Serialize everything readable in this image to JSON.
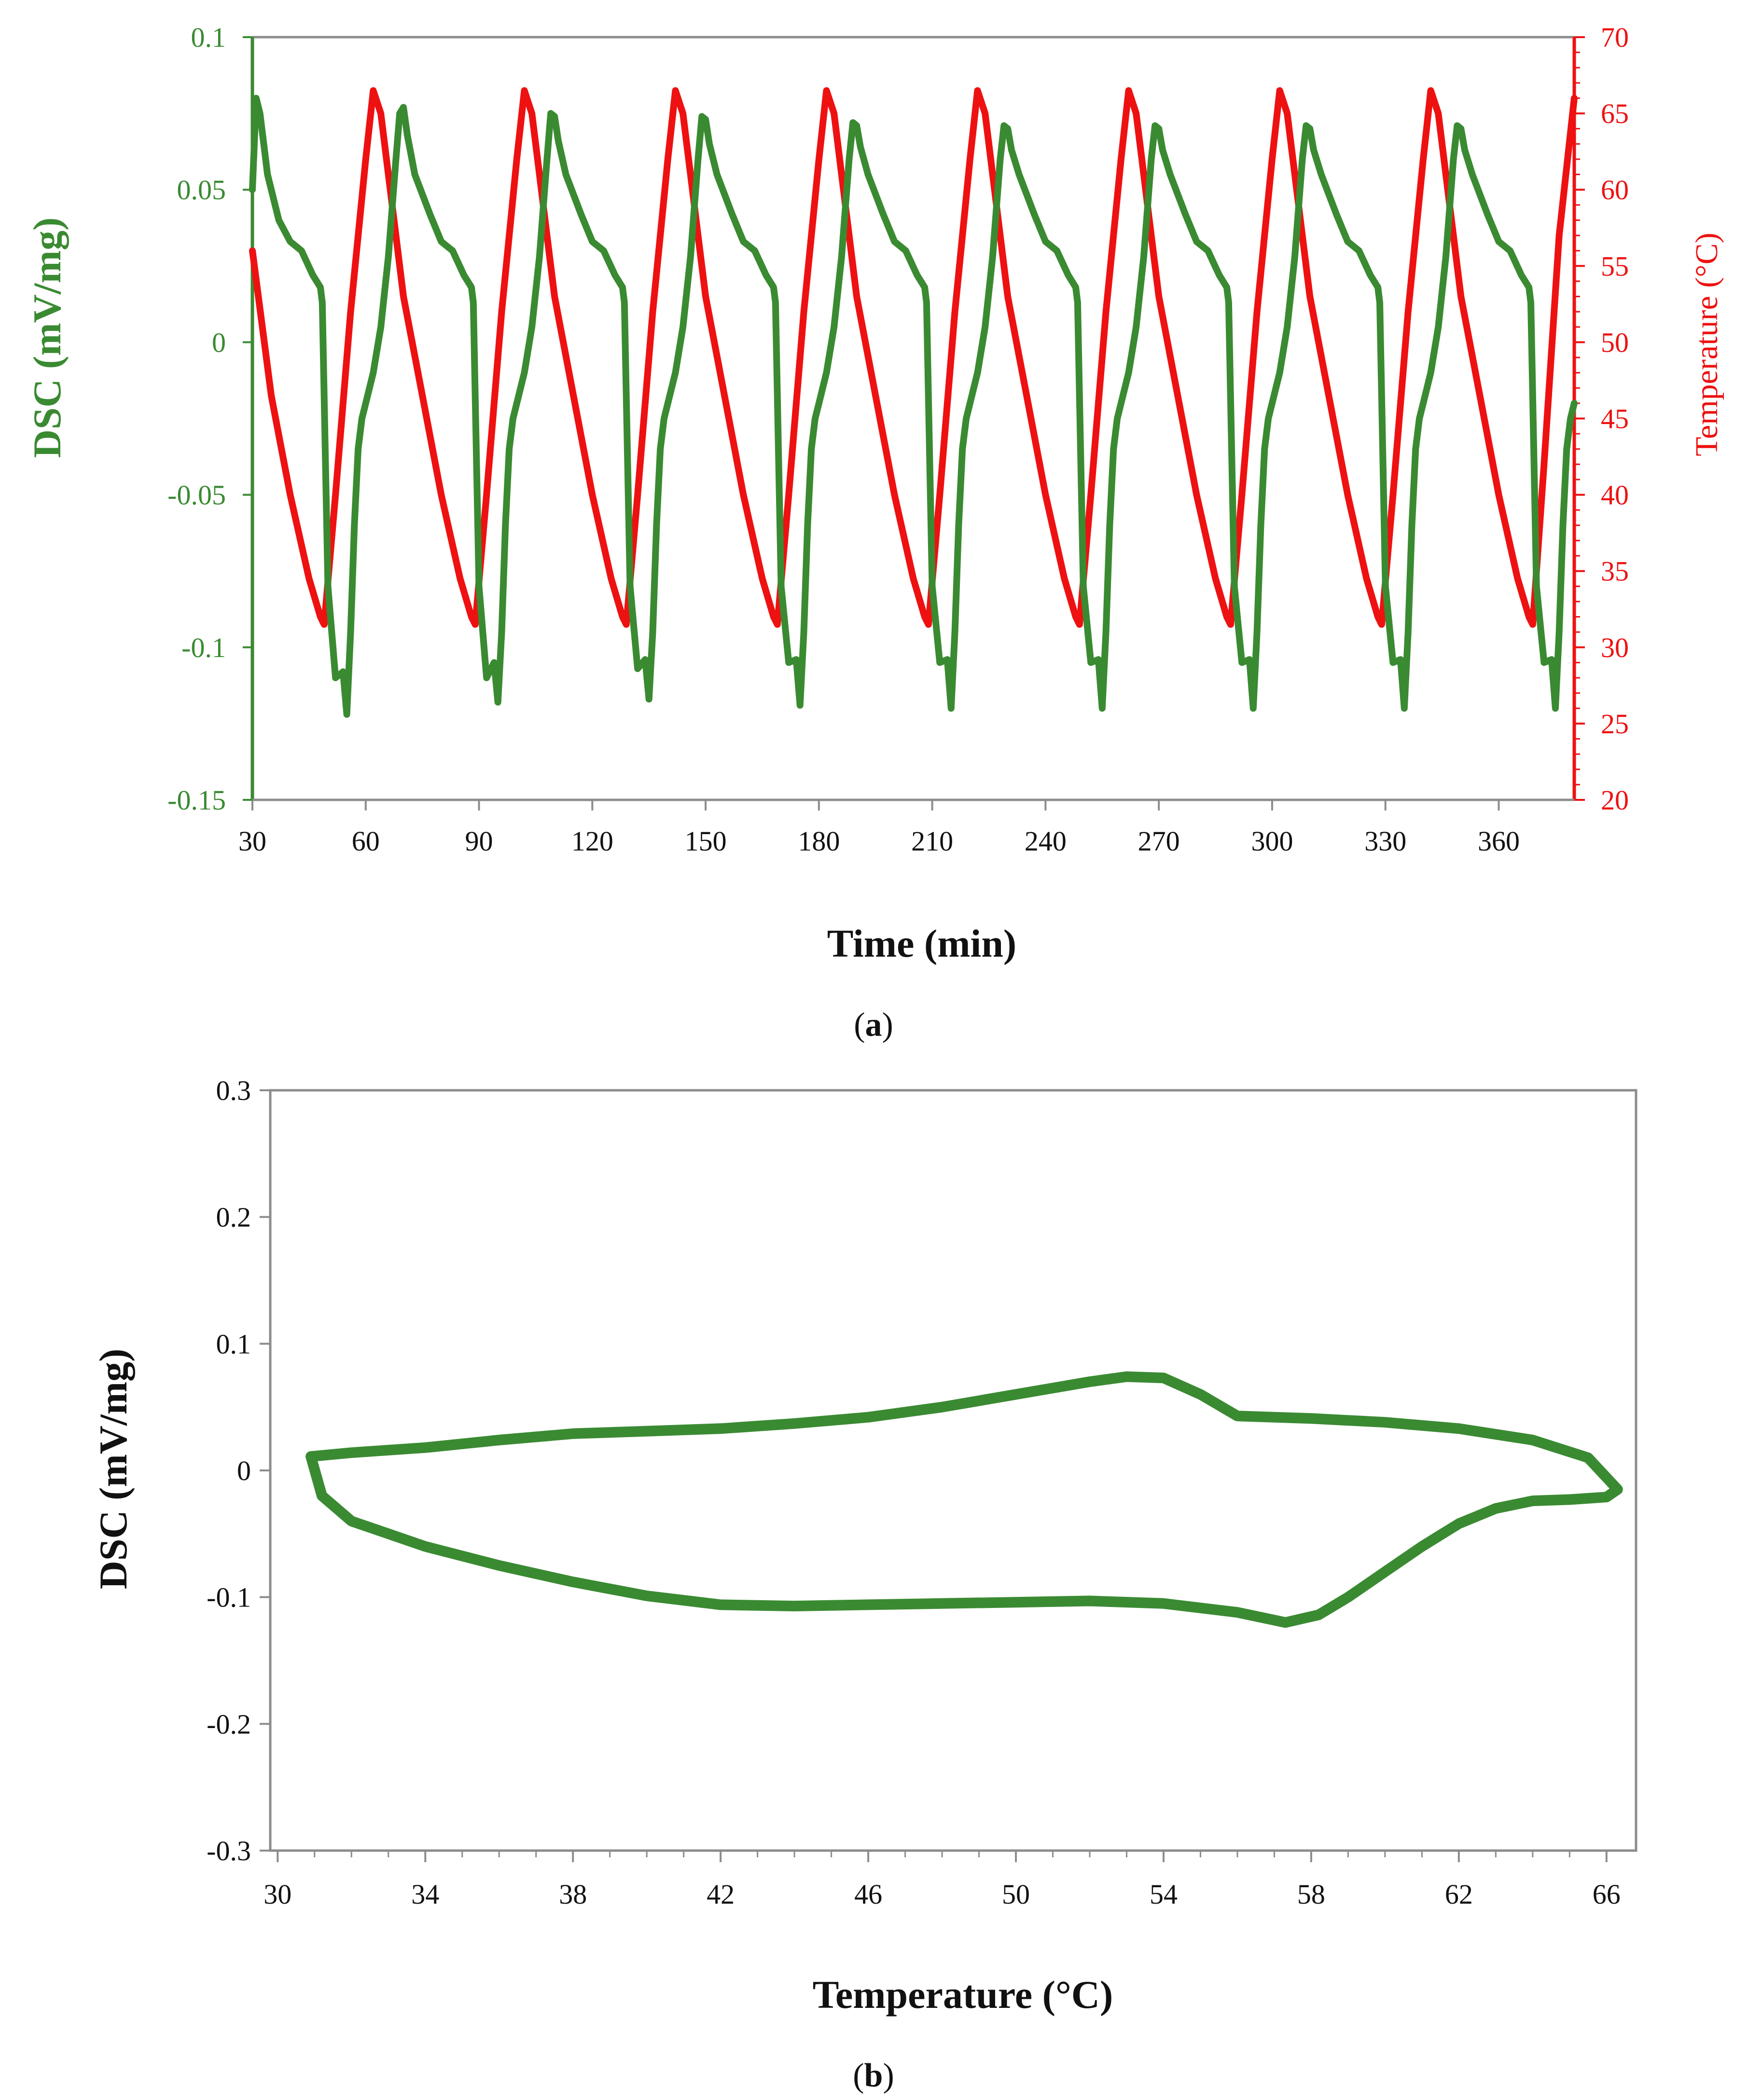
{
  "colors": {
    "dsc": "#3a8a32",
    "temperature": "#ee1111",
    "axis": "#8c8c8c",
    "text": "#111111"
  },
  "chart_data": [
    {
      "id": "a",
      "type": "line",
      "caption": {
        "open": "(",
        "letter": "a",
        "close": ")"
      },
      "xlabel": "Time (min)",
      "ylabel_left": "DSC (mV/mg)",
      "ylabel_right": "Temperature (°C)",
      "xlim": [
        30,
        380
      ],
      "ylim_left": [
        -0.15,
        0.1
      ],
      "ylim_right": [
        20,
        70
      ],
      "x_ticks": [
        30,
        60,
        90,
        120,
        150,
        180,
        210,
        240,
        270,
        300,
        330,
        360
      ],
      "y_ticks_left": [
        {
          "v": 0.1,
          "label": "0.1"
        },
        {
          "v": 0.05,
          "label": "0.05"
        },
        {
          "v": 0,
          "label": "0"
        },
        {
          "v": -0.05,
          "label": "-0.05"
        },
        {
          "v": -0.1,
          "label": "-0.1"
        },
        {
          "v": -0.15,
          "label": "-0.15"
        }
      ],
      "y_ticks_right": [
        70,
        65,
        60,
        55,
        50,
        45,
        40,
        35,
        30,
        25,
        20
      ],
      "series": [
        {
          "name": "Temperature",
          "axis": "right",
          "color": "#ee1111",
          "x": [
            30,
            35,
            40,
            45,
            48,
            49,
            52,
            56,
            60,
            62,
            64,
            66,
            68,
            70,
            75,
            80,
            85,
            88,
            89,
            92,
            96,
            100,
            102,
            104,
            106,
            108,
            110,
            115,
            120,
            125,
            128,
            129,
            132,
            136,
            140,
            142,
            144,
            146,
            148,
            150,
            155,
            160,
            165,
            168,
            169,
            172,
            176,
            180,
            182,
            184,
            186,
            188,
            190,
            195,
            200,
            205,
            208,
            209,
            212,
            216,
            220,
            222,
            224,
            226,
            228,
            230,
            235,
            240,
            245,
            248,
            249,
            252,
            256,
            260,
            262,
            264,
            266,
            268,
            270,
            275,
            280,
            285,
            288,
            289,
            292,
            296,
            300,
            302,
            304,
            306,
            308,
            310,
            315,
            320,
            325,
            328,
            329,
            332,
            336,
            340,
            342,
            344,
            346,
            348,
            350,
            355,
            360,
            365,
            368,
            369,
            372,
            376,
            380
          ],
          "values": [
            56,
            46.5,
            40,
            34.5,
            32,
            31.5,
            40,
            52,
            62,
            66.5,
            65,
            61,
            57,
            53,
            46.5,
            40,
            34.5,
            32,
            31.5,
            40,
            52,
            62,
            66.5,
            65,
            61,
            57,
            53,
            46.5,
            40,
            34.5,
            32,
            31.5,
            40,
            52,
            62,
            66.5,
            65,
            61,
            57,
            53,
            46.5,
            40,
            34.5,
            32,
            31.5,
            40,
            52,
            62,
            66.5,
            65,
            61,
            57,
            53,
            46.5,
            40,
            34.5,
            32,
            31.5,
            40,
            52,
            62,
            66.5,
            65,
            61,
            57,
            53,
            46.5,
            40,
            34.5,
            32,
            31.5,
            40,
            52,
            62,
            66.5,
            65,
            61,
            57,
            53,
            46.5,
            40,
            34.5,
            32,
            31.5,
            40,
            52,
            62,
            66.5,
            65,
            61,
            57,
            53,
            46.5,
            40,
            34.5,
            32,
            31.5,
            40,
            52,
            62,
            66.5,
            65,
            61,
            57,
            53,
            46.5,
            40,
            34.5,
            32,
            31.5,
            42,
            57,
            66
          ]
        },
        {
          "name": "DSC",
          "axis": "left",
          "color": "#3a8a32",
          "x": [
            30,
            31,
            32,
            34,
            37,
            40,
            43,
            46,
            48,
            48.5,
            50,
            52,
            54,
            55,
            56,
            57,
            58,
            59,
            60,
            62,
            64,
            66,
            68,
            69,
            70,
            71,
            73,
            77,
            80,
            83,
            86,
            88,
            88.5,
            90,
            92,
            94,
            95,
            96,
            97,
            98,
            99,
            100,
            102,
            104,
            106,
            108,
            109,
            110,
            111,
            113,
            117,
            120,
            123,
            126,
            128,
            128.5,
            130,
            132,
            134,
            135,
            136,
            137,
            138,
            139,
            140,
            142,
            144,
            146,
            148,
            149,
            150,
            151,
            153,
            157,
            160,
            163,
            166,
            168,
            168.5,
            170,
            172,
            174,
            175,
            176,
            177,
            178,
            179,
            180,
            182,
            184,
            186,
            188,
            189,
            190,
            191,
            193,
            197,
            200,
            203,
            206,
            208,
            208.5,
            210,
            212,
            214,
            215,
            216,
            217,
            218,
            219,
            220,
            222,
            224,
            226,
            228,
            229,
            230,
            231,
            233,
            237,
            240,
            243,
            246,
            248,
            248.5,
            250,
            252,
            254,
            255,
            256,
            257,
            258,
            259,
            260,
            262,
            264,
            266,
            268,
            269,
            270,
            271,
            273,
            277,
            280,
            283,
            286,
            288,
            288.5,
            290,
            292,
            294,
            295,
            296,
            297,
            298,
            299,
            300,
            302,
            304,
            306,
            308,
            309,
            310,
            311,
            313,
            317,
            320,
            323,
            326,
            328,
            328.5,
            330,
            332,
            334,
            335,
            336,
            337,
            338,
            339,
            340,
            342,
            344,
            346,
            348,
            349,
            350,
            351,
            353,
            357,
            360,
            363,
            366,
            368,
            368.5,
            370,
            372,
            374,
            375,
            376,
            377,
            378,
            379,
            380
          ],
          "values": [
            0.05,
            0.08,
            0.075,
            0.055,
            0.04,
            0.033,
            0.03,
            0.022,
            0.018,
            0.013,
            -0.08,
            -0.11,
            -0.108,
            -0.122,
            -0.095,
            -0.06,
            -0.035,
            -0.025,
            -0.02,
            -0.01,
            0.005,
            0.028,
            0.06,
            0.075,
            0.077,
            0.068,
            0.055,
            0.042,
            0.033,
            0.03,
            0.022,
            0.018,
            0.013,
            -0.08,
            -0.11,
            -0.105,
            -0.118,
            -0.095,
            -0.06,
            -0.035,
            -0.025,
            -0.02,
            -0.01,
            0.005,
            0.028,
            0.06,
            0.075,
            0.074,
            0.066,
            0.055,
            0.042,
            0.033,
            0.03,
            0.022,
            0.018,
            0.013,
            -0.08,
            -0.107,
            -0.104,
            -0.117,
            -0.095,
            -0.06,
            -0.035,
            -0.025,
            -0.02,
            -0.01,
            0.005,
            0.028,
            0.06,
            0.074,
            0.073,
            0.065,
            0.055,
            0.042,
            0.033,
            0.03,
            0.022,
            0.018,
            0.013,
            -0.08,
            -0.105,
            -0.104,
            -0.119,
            -0.095,
            -0.06,
            -0.035,
            -0.025,
            -0.02,
            -0.01,
            0.005,
            0.028,
            0.06,
            0.072,
            0.071,
            0.064,
            0.055,
            0.042,
            0.033,
            0.03,
            0.022,
            0.018,
            0.013,
            -0.08,
            -0.105,
            -0.104,
            -0.12,
            -0.095,
            -0.06,
            -0.035,
            -0.025,
            -0.02,
            -0.01,
            0.005,
            0.028,
            0.06,
            0.071,
            0.07,
            0.063,
            0.055,
            0.042,
            0.033,
            0.03,
            0.022,
            0.018,
            0.013,
            -0.08,
            -0.105,
            -0.104,
            -0.12,
            -0.095,
            -0.06,
            -0.035,
            -0.025,
            -0.02,
            -0.01,
            0.005,
            0.028,
            0.06,
            0.071,
            0.07,
            0.063,
            0.055,
            0.042,
            0.033,
            0.03,
            0.022,
            0.018,
            0.013,
            -0.08,
            -0.105,
            -0.104,
            -0.12,
            -0.095,
            -0.06,
            -0.035,
            -0.025,
            -0.02,
            -0.01,
            0.005,
            0.028,
            0.06,
            0.071,
            0.07,
            0.063,
            0.055,
            0.042,
            0.033,
            0.03,
            0.022,
            0.018,
            0.013,
            -0.08,
            -0.105,
            -0.104,
            -0.12,
            -0.095,
            -0.06,
            -0.035,
            -0.025,
            -0.02,
            -0.01,
            0.005,
            0.028,
            0.06,
            0.071,
            0.07,
            0.063,
            0.055,
            0.042,
            0.033,
            0.03,
            0.022,
            0.018,
            0.013,
            -0.08,
            -0.105,
            -0.104,
            -0.12,
            -0.095,
            -0.06,
            -0.035,
            -0.025,
            -0.02
          ]
        }
      ]
    },
    {
      "id": "b",
      "type": "line",
      "caption": {
        "open": "(",
        "letter": "b",
        "close": ")"
      },
      "xlabel": "Temperature (°C)",
      "ylabel": "DSC (mV/mg)",
      "xlim": [
        29.8,
        66.8
      ],
      "ylim": [
        -0.3,
        0.3
      ],
      "x_ticks": [
        30,
        34,
        38,
        42,
        46,
        50,
        54,
        58,
        62,
        66
      ],
      "y_ticks": [
        {
          "v": 0.3,
          "label": "0.3"
        },
        {
          "v": 0.2,
          "label": "0.2"
        },
        {
          "v": 0.1,
          "label": "0.1"
        },
        {
          "v": 0,
          "label": "0"
        },
        {
          "v": -0.1,
          "label": "-0.1"
        },
        {
          "v": -0.2,
          "label": "-0.2"
        },
        {
          "v": -0.3,
          "label": "-0.3"
        }
      ],
      "series": [
        {
          "name": "DSC loop",
          "color": "#3a8a32",
          "x": [
            30.9,
            32,
            34,
            36,
            38,
            40,
            42,
            44,
            46,
            48,
            50,
            52,
            53,
            54,
            55,
            56,
            58,
            60,
            62,
            64,
            65.5,
            66.3,
            66,
            65,
            64,
            63,
            62,
            61,
            60,
            59,
            58.2,
            57.3,
            56,
            54,
            52,
            50,
            48,
            46,
            44,
            42,
            40,
            38,
            36,
            34,
            32,
            31.2,
            30.9
          ],
          "y": [
            0.011,
            0.014,
            0.018,
            0.024,
            0.029,
            0.031,
            0.033,
            0.037,
            0.042,
            0.05,
            0.06,
            0.07,
            0.074,
            0.073,
            0.06,
            0.043,
            0.041,
            0.038,
            0.033,
            0.024,
            0.01,
            -0.015,
            -0.021,
            -0.023,
            -0.024,
            -0.03,
            -0.042,
            -0.06,
            -0.08,
            -0.1,
            -0.114,
            -0.12,
            -0.112,
            -0.105,
            -0.103,
            -0.104,
            -0.105,
            -0.106,
            -0.107,
            -0.106,
            -0.099,
            -0.088,
            -0.075,
            -0.06,
            -0.04,
            -0.02,
            0.011
          ]
        }
      ]
    }
  ]
}
